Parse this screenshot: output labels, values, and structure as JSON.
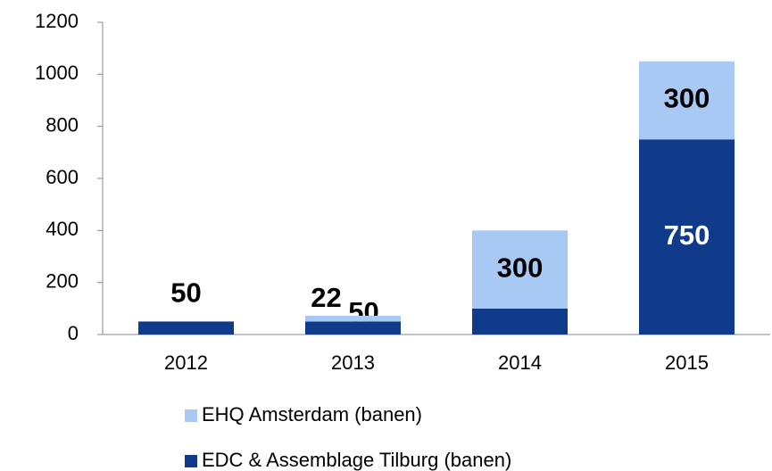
{
  "chart_data": {
    "type": "stacked_bar",
    "categories": [
      "2012",
      "2013",
      "2014",
      "2015"
    ],
    "series": [
      {
        "name": "EDC & Assemblage Tilburg (banen)",
        "color": "#103a8a",
        "values": [
          50,
          50,
          100,
          750
        ]
      },
      {
        "name": "EHQ Amsterdam (banen)",
        "color": "#a9c9f5",
        "values": [
          null,
          22,
          300,
          300
        ]
      }
    ],
    "ylim": [
      0,
      1200
    ],
    "yticks": [
      0,
      200,
      400,
      600,
      800,
      1000,
      1200
    ],
    "grid": false
  }
}
